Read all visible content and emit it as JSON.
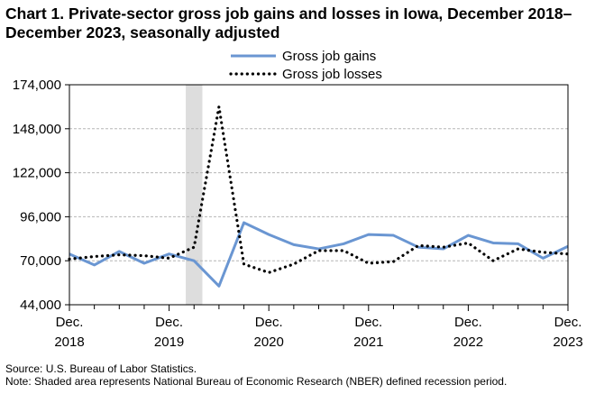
{
  "title": "Chart 1. Private-sector gross job gains and losses in Iowa, December 2018–December 2023, seasonally adjusted",
  "footer": {
    "source": "Source: U.S. Bureau of Labor Statistics.",
    "note": "Note: Shaded area represents National Bureau of Economic Research (NBER) defined  recession period."
  },
  "chart_data": {
    "type": "line",
    "x_ticks": [
      {
        "month": "Dec.",
        "year": "2018"
      },
      {
        "month": "Dec.",
        "year": "2019"
      },
      {
        "month": "Dec.",
        "year": "2020"
      },
      {
        "month": "Dec.",
        "year": "2021"
      },
      {
        "month": "Dec.",
        "year": "2022"
      },
      {
        "month": "Dec.",
        "year": "2023"
      }
    ],
    "quarters": [
      "Dec 2018",
      "Mar 2019",
      "Jun 2019",
      "Sep 2019",
      "Dec 2019",
      "Mar 2020",
      "Jun 2020",
      "Sep 2020",
      "Dec 2020",
      "Mar 2021",
      "Jun 2021",
      "Sep 2021",
      "Dec 2021",
      "Mar 2022",
      "Jun 2022",
      "Sep 2022",
      "Dec 2022",
      "Mar 2023",
      "Jun 2023",
      "Sep 2023",
      "Dec 2023"
    ],
    "y_ticks": [
      "44,000",
      "70,000",
      "96,000",
      "122,000",
      "148,000",
      "174,000"
    ],
    "ylim": [
      44000,
      174000
    ],
    "grid": "horizontal",
    "legend_position": "top",
    "recession": {
      "start": "Feb 2020",
      "end": "Apr 2020",
      "color": "#dddddd"
    },
    "series": [
      {
        "name": "Gross job gains",
        "color": "#6a96d2",
        "style": "solid",
        "values": [
          74000,
          67500,
          75500,
          68500,
          74000,
          70000,
          55000,
          92500,
          85500,
          79500,
          77000,
          80000,
          85500,
          85000,
          78000,
          77000,
          85000,
          80500,
          80000,
          71500,
          78500
        ]
      },
      {
        "name": "Gross job losses",
        "color": "#000000",
        "style": "dotted",
        "values": [
          71000,
          72500,
          73500,
          73000,
          71500,
          78000,
          161000,
          68000,
          63000,
          68000,
          76000,
          76000,
          68500,
          69500,
          79000,
          78000,
          80500,
          70000,
          77000,
          75000,
          74000
        ]
      }
    ]
  }
}
